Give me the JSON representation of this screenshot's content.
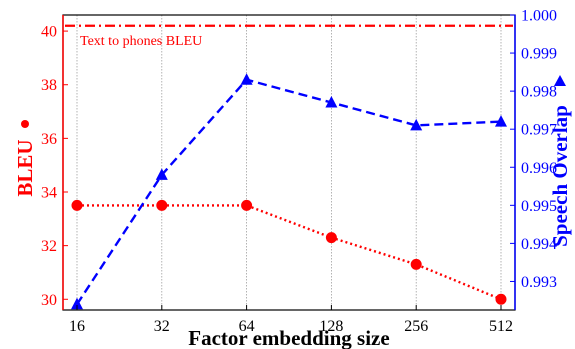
{
  "chart_data": {
    "type": "line",
    "title": "",
    "xlabel": "Factor embedding size",
    "categories": [
      "16",
      "32",
      "64",
      "128",
      "256",
      "512"
    ],
    "y_left": {
      "label": "BLEU",
      "label_marker": "circle",
      "color": "#ff0000",
      "ylim": [
        29.6,
        40.6
      ],
      "ticks": [
        30,
        32,
        34,
        36,
        38,
        40
      ],
      "tick_labels": [
        "30",
        "32",
        "34",
        "36",
        "38",
        "40"
      ]
    },
    "y_right": {
      "label": "Speech Overlap",
      "label_marker": "triangle",
      "color": "#0000ff",
      "ylim": [
        0.99225,
        1.0
      ],
      "ticks": [
        0.993,
        0.994,
        0.995,
        0.996,
        0.997,
        0.998,
        0.999,
        1.0
      ],
      "tick_labels": [
        "0.993",
        "0.994",
        "0.995",
        "0.996",
        "0.997",
        "0.998",
        "0.999",
        "1.000"
      ]
    },
    "grid": "vertical",
    "series": [
      {
        "axis": "left",
        "style": "dotted",
        "marker": "circle",
        "color": "#ff0000",
        "values": [
          33.5,
          33.5,
          33.5,
          32.3,
          31.3,
          30.0
        ]
      },
      {
        "axis": "right",
        "style": "dashed",
        "marker": "triangle",
        "color": "#0000ff",
        "values": [
          0.9924,
          0.9958,
          0.9983,
          0.9977,
          0.9971,
          0.9972
        ]
      }
    ],
    "reference_line": {
      "axis": "left",
      "value": 40.2,
      "style": "dashdot",
      "color": "#ff0000",
      "label": "Text to phones BLEU"
    }
  }
}
